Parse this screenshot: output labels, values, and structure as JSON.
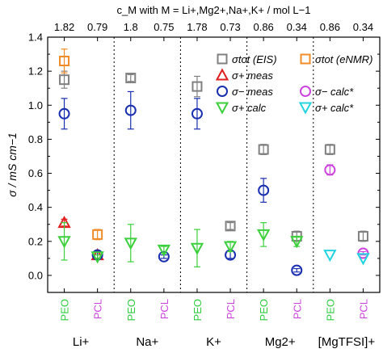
{
  "chart_data": {
    "type": "scatter",
    "top_axis_title": "c_M with M = Li+,Mg2+,Na+,K+ / mol L−1",
    "ylabel": "σ / mS cm−1",
    "ylim": [
      -0.1,
      1.4
    ],
    "yticks": [
      "0.0",
      "0.2",
      "0.4",
      "0.6",
      "0.8",
      "1.0",
      "1.2",
      "1.4"
    ],
    "ytick_values": [
      0.0,
      0.2,
      0.4,
      0.6,
      0.8,
      1.0,
      1.2,
      1.4
    ],
    "categories": [
      "PEO",
      "PCL",
      "PEO",
      "PCL",
      "PEO",
      "PCL",
      "PEO",
      "PCL",
      "PEO",
      "PCL"
    ],
    "category_colors": [
      "#2ecc40",
      "#cc44dd",
      "#2ecc40",
      "#cc44dd",
      "#2ecc40",
      "#cc44dd",
      "#2ecc40",
      "#cc44dd",
      "#2ecc40",
      "#cc44dd"
    ],
    "concentrations": [
      "1.82",
      "0.79",
      "1.8",
      "0.75",
      "1.78",
      "0.73",
      "0.86",
      "0.34",
      "0.86",
      "0.34"
    ],
    "groups": [
      "Li+",
      "Na+",
      "K+",
      "Mg2+",
      "[MgTFSI]+"
    ],
    "series": [
      {
        "name": "σtot (EIS)",
        "marker": "square",
        "color": "#808080",
        "values": [
          1.15,
          null,
          1.16,
          null,
          1.11,
          0.29,
          0.74,
          0.23,
          0.74,
          0.23
        ],
        "errors": [
          0.05,
          null,
          0.02,
          null,
          0.06,
          0.02,
          0.03,
          0.03,
          0.03,
          0.03
        ]
      },
      {
        "name": "σtot (eNMR)",
        "marker": "square",
        "color": "#f08c28",
        "values": [
          1.26,
          0.24,
          null,
          null,
          null,
          null,
          null,
          null,
          null,
          null
        ],
        "errors": [
          0.07,
          0.03,
          null,
          null,
          null,
          null,
          null,
          null,
          null,
          null
        ]
      },
      {
        "name": "σ+ meas",
        "marker": "triangle-up",
        "color": "#e02020",
        "values": [
          0.31,
          0.12,
          null,
          null,
          null,
          null,
          null,
          null,
          null,
          null
        ],
        "errors": [
          0.02,
          0.02,
          null,
          null,
          null,
          null,
          null,
          null,
          null,
          null
        ]
      },
      {
        "name": "σ− meas",
        "marker": "circle",
        "color": "#1a2fb0",
        "values": [
          0.95,
          0.12,
          0.97,
          0.11,
          0.95,
          0.12,
          0.5,
          0.03,
          null,
          null
        ],
        "errors": [
          0.09,
          0.02,
          0.11,
          0.01,
          0.09,
          0.02,
          0.07,
          0.01,
          null,
          null
        ]
      },
      {
        "name": "σ+ calc",
        "marker": "triangle-down",
        "color": "#3cd03c",
        "values": [
          0.2,
          0.11,
          0.19,
          0.15,
          0.16,
          0.17,
          0.24,
          0.2,
          null,
          null
        ],
        "errors": [
          0.11,
          0.01,
          0.11,
          0.02,
          0.11,
          0.03,
          0.07,
          0.03,
          null,
          null
        ]
      },
      {
        "name": "σ− calc*",
        "marker": "circle",
        "color": "#cc44dd",
        "values": [
          null,
          null,
          null,
          null,
          null,
          null,
          null,
          null,
          0.62,
          0.13
        ],
        "errors": [
          null,
          null,
          null,
          null,
          null,
          null,
          null,
          null,
          0.03,
          0.01
        ]
      },
      {
        "name": "σ+ calc*",
        "marker": "triangle-down",
        "color": "#22d4e0",
        "values": [
          null,
          null,
          null,
          null,
          null,
          null,
          null,
          null,
          0.12,
          0.1
        ],
        "errors": [
          null,
          null,
          null,
          null,
          null,
          null,
          null,
          null,
          null,
          null
        ]
      }
    ],
    "legend": [
      {
        "name": "σtot (EIS)",
        "marker": "square",
        "color": "#808080"
      },
      {
        "name": "σtot (eNMR)",
        "marker": "square",
        "color": "#f08c28"
      },
      {
        "name": "σ+ meas",
        "marker": "triangle-up",
        "color": "#e02020"
      },
      {
        "name": "σ− meas",
        "marker": "circle",
        "color": "#1a2fb0"
      },
      {
        "name": "σ+ calc",
        "marker": "triangle-down",
        "color": "#3cd03c"
      },
      {
        "name": "σ− calc*",
        "marker": "circle",
        "color": "#cc44dd"
      },
      {
        "name": "σ+ calc*",
        "marker": "triangle-down",
        "color": "#22d4e0"
      }
    ],
    "legend_position": "top-right",
    "grid": false,
    "group_separators": "dotted"
  }
}
